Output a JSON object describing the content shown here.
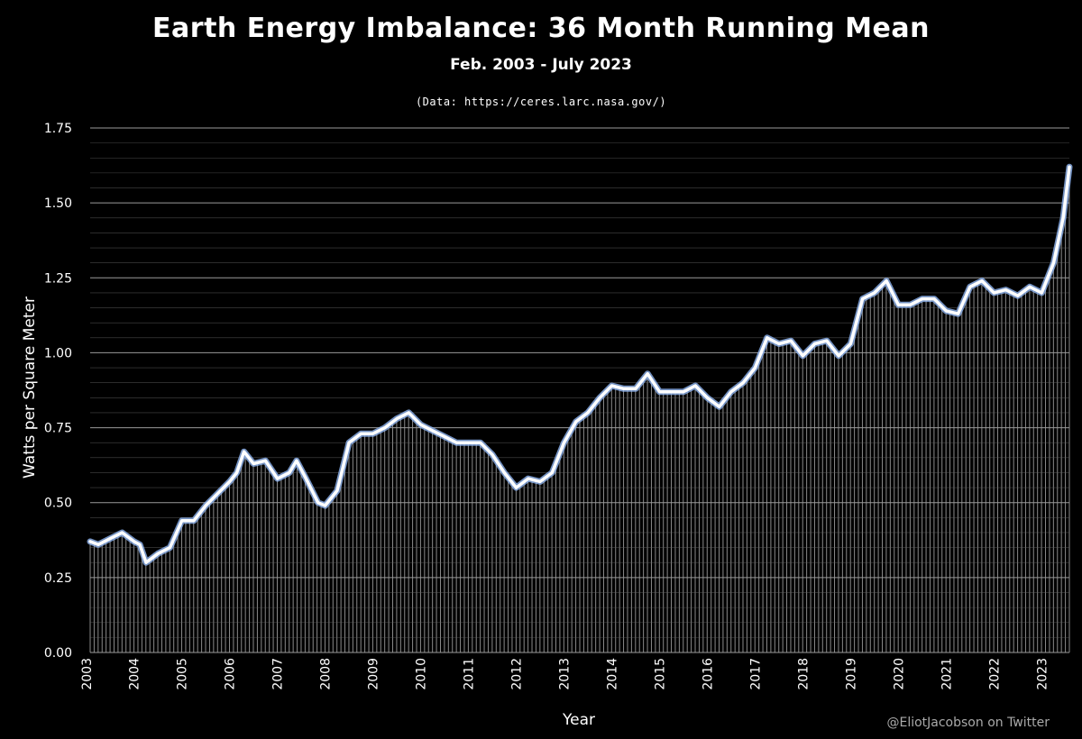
{
  "title": "Earth Energy Imbalance: 36 Month Running Mean",
  "subtitle": "Feb. 2003 - July 2023",
  "source": "(Data: https://ceres.larc.nasa.gov/)",
  "credit": "@EliotJacobson on Twitter",
  "colors": {
    "background": "#000000",
    "line": "#ffffff",
    "line_glow": "#8fb4f0",
    "gridline": "#666666",
    "fill_hatch": "#8a8a8a"
  },
  "chart_data": {
    "type": "line",
    "xlabel": "Year",
    "ylabel": "Watts per Square Meter",
    "ylim": [
      0,
      1.75
    ],
    "xlim": [
      2003.08,
      2023.58
    ],
    "grid": true,
    "legend": "none",
    "y_ticks": [
      "0.00",
      "0.25",
      "0.50",
      "0.75",
      "1.00",
      "1.25",
      "1.50",
      "1.75"
    ],
    "x_ticks": [
      "2003",
      "2004",
      "2005",
      "2006",
      "2007",
      "2008",
      "2009",
      "2010",
      "2011",
      "2012",
      "2013",
      "2014",
      "2015",
      "2016",
      "2017",
      "2018",
      "2019",
      "2020",
      "2021",
      "2022",
      "2023"
    ],
    "series": [
      {
        "x": [
          2003.08,
          2003.25,
          2003.5,
          2003.75,
          2004.0,
          2004.12,
          2004.25,
          2004.5,
          2004.75,
          2005.0,
          2005.25,
          2005.5,
          2005.75,
          2006.0,
          2006.15,
          2006.3,
          2006.5,
          2006.75,
          2007.0,
          2007.25,
          2007.4,
          2007.6,
          2007.85,
          2008.0,
          2008.25,
          2008.5,
          2008.75,
          2009.0,
          2009.25,
          2009.5,
          2009.75,
          2010.0,
          2010.25,
          2010.5,
          2010.75,
          2011.0,
          2011.25,
          2011.5,
          2011.75,
          2012.0,
          2012.25,
          2012.5,
          2012.75,
          2013.0,
          2013.25,
          2013.5,
          2013.75,
          2014.0,
          2014.25,
          2014.5,
          2014.75,
          2015.0,
          2015.25,
          2015.5,
          2015.75,
          2016.0,
          2016.25,
          2016.5,
          2016.75,
          2017.0,
          2017.25,
          2017.5,
          2017.75,
          2018.0,
          2018.25,
          2018.5,
          2018.75,
          2019.0,
          2019.25,
          2019.5,
          2019.75,
          2020.0,
          2020.25,
          2020.5,
          2020.75,
          2021.0,
          2021.25,
          2021.5,
          2021.75,
          2022.0,
          2022.25,
          2022.5,
          2022.75,
          2023.0,
          2023.25,
          2023.45,
          2023.58
        ],
        "values": [
          0.37,
          0.36,
          0.38,
          0.4,
          0.37,
          0.36,
          0.3,
          0.33,
          0.35,
          0.44,
          0.44,
          0.49,
          0.53,
          0.57,
          0.6,
          0.67,
          0.63,
          0.64,
          0.58,
          0.6,
          0.64,
          0.58,
          0.5,
          0.49,
          0.54,
          0.7,
          0.73,
          0.73,
          0.75,
          0.78,
          0.8,
          0.76,
          0.74,
          0.72,
          0.7,
          0.7,
          0.7,
          0.66,
          0.6,
          0.55,
          0.58,
          0.57,
          0.6,
          0.7,
          0.77,
          0.8,
          0.85,
          0.89,
          0.88,
          0.88,
          0.93,
          0.87,
          0.87,
          0.87,
          0.89,
          0.85,
          0.82,
          0.87,
          0.9,
          0.95,
          1.05,
          1.03,
          1.04,
          0.99,
          1.03,
          1.04,
          0.99,
          1.03,
          1.18,
          1.2,
          1.24,
          1.16,
          1.16,
          1.18,
          1.18,
          1.14,
          1.13,
          1.22,
          1.24,
          1.2,
          1.21,
          1.19,
          1.22,
          1.2,
          1.3,
          1.45,
          1.62
        ]
      }
    ]
  }
}
